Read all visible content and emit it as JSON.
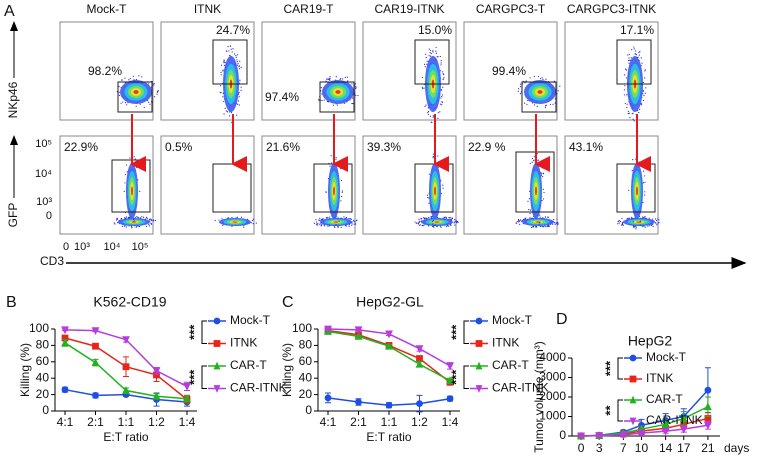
{
  "panel_a": {
    "label": "A",
    "columns": [
      "Mock-T",
      "ITNK",
      "CAR19-T",
      "CAR19-ITNK",
      "CARGPC3-T",
      "CARGPC3-ITNK"
    ],
    "row1_percent": [
      "98.2%",
      "24.7%",
      "97.4%",
      "15.0%",
      "99.4%",
      "17.1%"
    ],
    "row2_percent": [
      "22.9%",
      "0.5%",
      "21.6%",
      "39.3%",
      "22.9 %",
      "43.1%"
    ],
    "y_labels": [
      "NKp46",
      "GFP"
    ],
    "x_label": "CD3",
    "gfp_ticks": [
      "10⁵",
      "10⁴",
      "10³",
      "0"
    ],
    "cd3_ticks": [
      "0",
      "10³",
      "10⁴",
      "10⁵"
    ]
  },
  "chart_data": [
    {
      "type": "line",
      "label": "B",
      "title": "K562-CD19",
      "x_label": "E:T ratio",
      "y_label": "Killing  (%)",
      "categories": [
        "4:1",
        "2:1",
        "1:1",
        "1:2",
        "1:4"
      ],
      "ylim": [
        0,
        100
      ],
      "yticks": [
        0,
        20,
        40,
        60,
        80,
        100
      ],
      "significance": [
        "***",
        "***"
      ],
      "series": [
        {
          "name": "Mock-T",
          "color": "#1f4fe0",
          "marker": "circle",
          "values": [
            26,
            19,
            20,
            14,
            11
          ],
          "errors": [
            3,
            3,
            2,
            8,
            5
          ]
        },
        {
          "name": "ITNK",
          "color": "#e8251b",
          "marker": "square",
          "values": [
            89,
            79,
            54,
            44,
            14
          ],
          "errors": [
            3,
            2,
            12,
            8,
            5
          ]
        },
        {
          "name": "CAR-T",
          "color": "#22b21f",
          "marker": "triangle-up",
          "values": [
            83,
            59,
            25,
            18,
            15
          ],
          "errors": [
            4,
            4,
            3,
            3,
            4
          ]
        },
        {
          "name": "CAR-ITNK",
          "color": "#b63ce0",
          "marker": "triangle-down",
          "values": [
            99,
            98,
            87,
            49,
            30
          ],
          "errors": [
            1,
            1,
            3,
            4,
            5
          ]
        }
      ]
    },
    {
      "type": "line",
      "label": "C",
      "title": "HepG2-GL",
      "x_label": "E:T ratio",
      "y_label": "Killing  (%)",
      "categories": [
        "4:1",
        "2:1",
        "1:1",
        "1:2",
        "1:4"
      ],
      "ylim": [
        0,
        100
      ],
      "yticks": [
        0,
        20,
        40,
        60,
        80,
        100
      ],
      "significance": [
        "***",
        "***"
      ],
      "series": [
        {
          "name": "Mock-T",
          "color": "#1f4fe0",
          "marker": "circle",
          "values": [
            16,
            11,
            7,
            9,
            15
          ],
          "errors": [
            6,
            4,
            3,
            10,
            3
          ]
        },
        {
          "name": "ITNK",
          "color": "#e8251b",
          "marker": "square",
          "values": [
            98,
            93,
            80,
            64,
            35
          ],
          "errors": [
            1,
            1,
            2,
            3,
            3
          ]
        },
        {
          "name": "CAR-T",
          "color": "#22b21f",
          "marker": "triangle-up",
          "values": [
            97,
            91,
            79,
            57,
            37
          ],
          "errors": [
            1,
            1,
            2,
            3,
            3
          ]
        },
        {
          "name": "CAR-ITNK",
          "color": "#b63ce0",
          "marker": "triangle-down",
          "values": [
            100,
            99,
            94,
            76,
            55
          ],
          "errors": [
            1,
            1,
            2,
            3,
            4
          ]
        }
      ]
    },
    {
      "type": "line",
      "label": "D",
      "title": "HepG2",
      "x_label": "days",
      "y_label": "Tumor volume (mm³)",
      "x": [
        0,
        3,
        7,
        10,
        14,
        17,
        21
      ],
      "xlim": [
        -1.5,
        23
      ],
      "xticks": [
        0,
        3,
        7,
        10,
        14,
        17,
        21
      ],
      "ylim": [
        0,
        4000
      ],
      "yticks": [
        0,
        1000,
        2000,
        3000,
        4000
      ],
      "significance": [
        "***",
        "**"
      ],
      "series": [
        {
          "name": "Mock-T",
          "color": "#1f4fe0",
          "marker": "circle",
          "values": [
            0,
            30,
            200,
            550,
            800,
            1000,
            2350
          ],
          "errors": [
            0,
            20,
            100,
            300,
            350,
            400,
            1150
          ]
        },
        {
          "name": "ITNK",
          "color": "#e8251b",
          "marker": "square",
          "values": [
            0,
            20,
            100,
            250,
            400,
            600,
            900
          ],
          "errors": [
            0,
            10,
            50,
            100,
            150,
            200,
            300
          ]
        },
        {
          "name": "CAR-T",
          "color": "#22b21f",
          "marker": "triangle-up",
          "values": [
            0,
            25,
            150,
            350,
            600,
            900,
            1500
          ],
          "errors": [
            0,
            15,
            80,
            150,
            250,
            350,
            500
          ]
        },
        {
          "name": "CAR-ITNK",
          "color": "#b63ce0",
          "marker": "triangle-down",
          "values": [
            0,
            15,
            60,
            150,
            250,
            350,
            550
          ],
          "errors": [
            0,
            10,
            30,
            80,
            100,
            150,
            200
          ]
        }
      ]
    }
  ]
}
